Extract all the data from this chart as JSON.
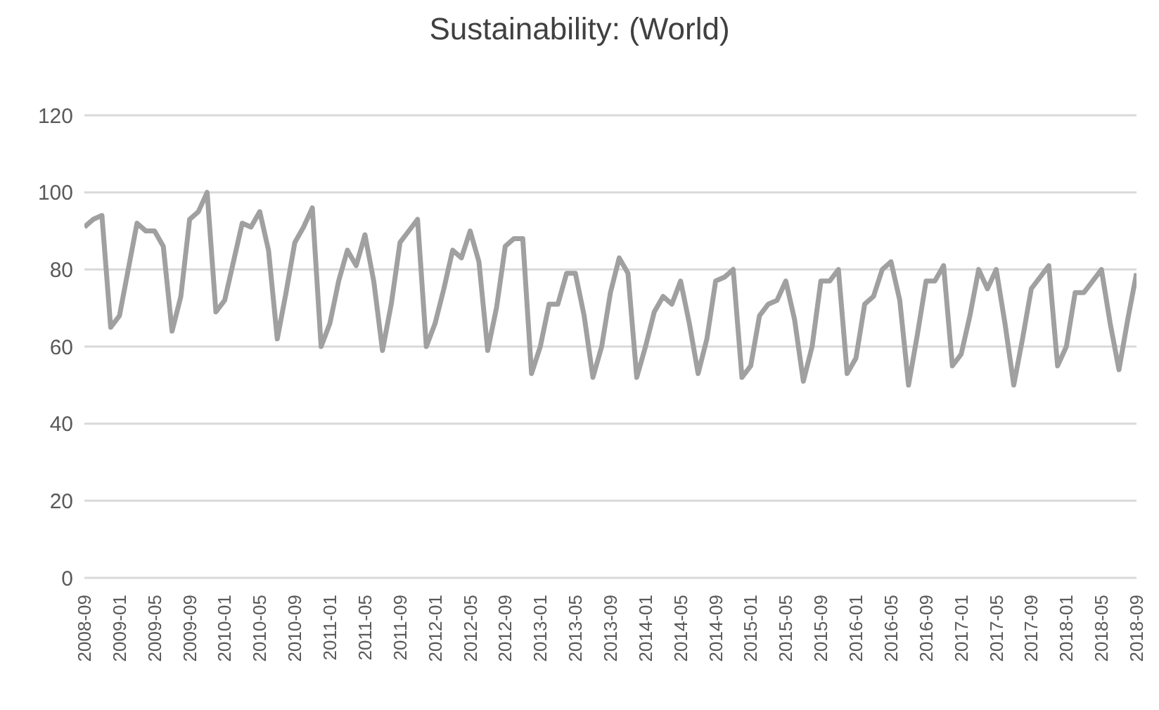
{
  "chart_data": {
    "type": "line",
    "title": "Sustainability: (World)",
    "categories": [
      "2008-09",
      null,
      null,
      null,
      "2009-01",
      null,
      null,
      null,
      "2009-05",
      null,
      null,
      null,
      "2009-09",
      null,
      null,
      null,
      "2010-01",
      null,
      null,
      null,
      "2010-05",
      null,
      null,
      null,
      "2010-09",
      null,
      null,
      null,
      "2011-01",
      null,
      null,
      null,
      "2011-05",
      null,
      null,
      null,
      "2011-09",
      null,
      null,
      null,
      "2012-01",
      null,
      null,
      null,
      "2012-05",
      null,
      null,
      null,
      "2012-09",
      null,
      null,
      null,
      "2013-01",
      null,
      null,
      null,
      "2013-05",
      null,
      null,
      null,
      "2013-09",
      null,
      null,
      null,
      "2014-01",
      null,
      null,
      null,
      "2014-05",
      null,
      null,
      null,
      "2014-09",
      null,
      null,
      null,
      "2015-01",
      null,
      null,
      null,
      "2015-05",
      null,
      null,
      null,
      "2015-09",
      null,
      null,
      null,
      "2016-01",
      null,
      null,
      null,
      "2016-05",
      null,
      null,
      null,
      "2016-09",
      null,
      null,
      null,
      "2017-01",
      null,
      null,
      null,
      "2017-05",
      null,
      null,
      null,
      "2017-09",
      null,
      null,
      null,
      "2018-01",
      null,
      null,
      null,
      "2018-05",
      null,
      null,
      null,
      "2018-09"
    ],
    "series": [
      {
        "color": "#a0a0a0",
        "values": [
          91,
          93,
          94,
          65,
          68,
          80,
          92,
          90,
          90,
          86,
          64,
          73,
          93,
          95,
          100,
          69,
          72,
          82,
          92,
          91,
          95,
          85,
          62,
          74,
          87,
          91,
          96,
          60,
          66,
          77,
          85,
          81,
          89,
          77,
          59,
          71,
          87,
          90,
          93,
          60,
          66,
          75,
          85,
          83,
          90,
          82,
          59,
          70,
          86,
          88,
          88,
          53,
          60,
          71,
          71,
          79,
          79,
          68,
          52,
          60,
          74,
          83,
          79,
          52,
          60,
          69,
          73,
          71,
          77,
          66,
          53,
          62,
          77,
          78,
          80,
          52,
          55,
          68,
          71,
          72,
          77,
          67,
          51,
          60,
          77,
          77,
          80,
          53,
          57,
          71,
          73,
          80,
          82,
          72,
          50,
          63,
          77,
          77,
          81,
          55,
          58,
          68,
          80,
          75,
          80,
          66,
          50,
          62,
          75,
          78,
          81,
          55,
          60,
          74,
          74,
          77,
          80,
          66,
          54,
          67,
          79
        ]
      }
    ],
    "ylim": [
      0,
      120
    ],
    "yticks": [
      0,
      20,
      40,
      60,
      80,
      100,
      120
    ],
    "grid": "y",
    "legend": false,
    "marker": "none",
    "line_style": "solid"
  }
}
